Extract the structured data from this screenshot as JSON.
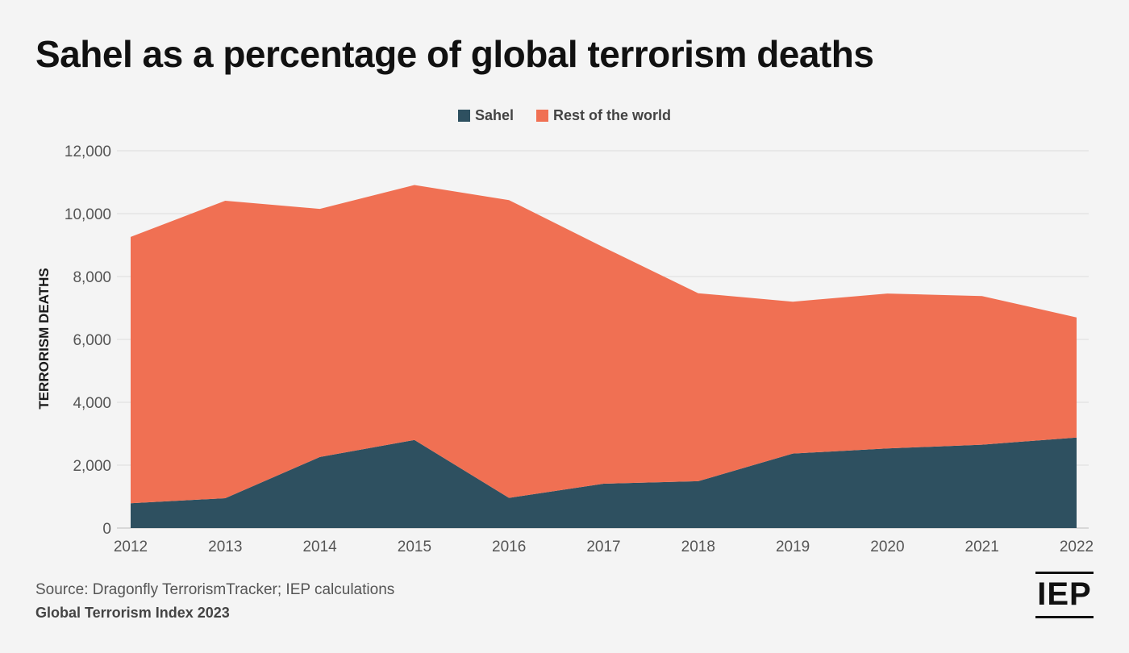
{
  "title": "Sahel as a percentage of global terrorism deaths",
  "source": "Source: Dragonfly TerrorismTracker; IEP calculations",
  "publication": "Global Terrorism Index 2023",
  "logo_text": "IEP",
  "colors": {
    "sahel": "#2e5060",
    "rest": "#f07053",
    "background": "#f4f4f4",
    "grid": "#dcdcdc",
    "axis_text": "#555555"
  },
  "chart_data": {
    "type": "area",
    "stacked": true,
    "title": "Sahel as a percentage of global terrorism deaths",
    "xlabel": "",
    "ylabel": "TERRORISM DEATHS",
    "x": [
      2012,
      2013,
      2014,
      2015,
      2016,
      2017,
      2018,
      2019,
      2020,
      2021,
      2022
    ],
    "x_tick_labels": [
      "2012",
      "2013",
      "2014",
      "2015",
      "2016",
      "2017",
      "2018",
      "2019",
      "2020",
      "2021",
      "2022"
    ],
    "ylim": [
      0,
      12000
    ],
    "y_ticks": [
      0,
      2000,
      4000,
      6000,
      8000,
      10000,
      12000
    ],
    "y_tick_labels": [
      "0",
      "2,000",
      "4,000",
      "6,000",
      "8,000",
      "10,000",
      "12,000"
    ],
    "grid": true,
    "legend_position": "top-center",
    "series": [
      {
        "name": "Sahel",
        "color": "#2e5060",
        "values": [
          790,
          950,
          2260,
          2800,
          960,
          1410,
          1490,
          2370,
          2530,
          2650,
          2880
        ]
      },
      {
        "name": "Rest of the world",
        "color": "#f07053",
        "values": [
          8470,
          9460,
          7890,
          8110,
          9470,
          7520,
          5980,
          4830,
          4930,
          4730,
          3820
        ]
      }
    ]
  }
}
